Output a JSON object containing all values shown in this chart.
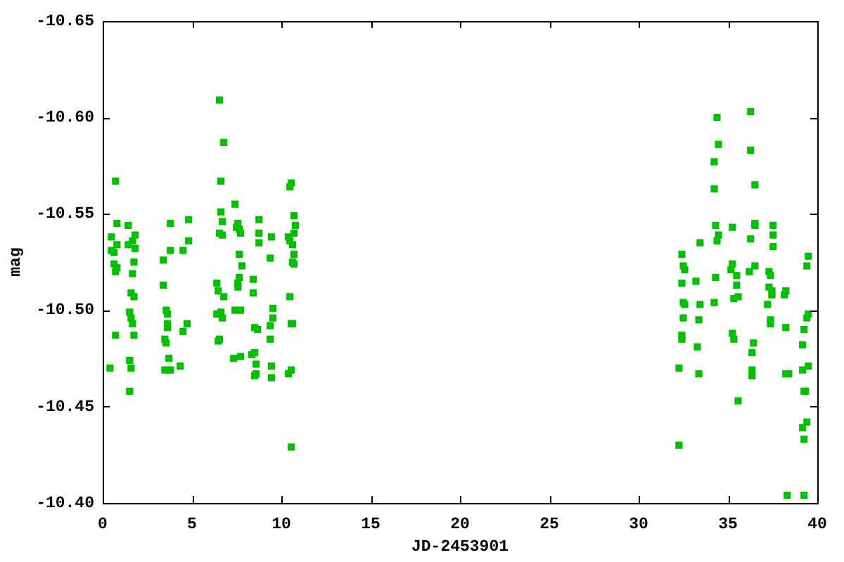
{
  "chart_data": {
    "type": "scatter",
    "xlabel": "JD-2453901",
    "ylabel": "mag",
    "xlim": [
      0,
      40
    ],
    "xticks": [
      0,
      5,
      10,
      15,
      20,
      25,
      30,
      35,
      40
    ],
    "ylim": [
      -10.4,
      -10.65
    ],
    "yticks": [
      {
        "value": -10.65,
        "label": "-10.65"
      },
      {
        "value": -10.6,
        "label": "-10.60"
      },
      {
        "value": -10.55,
        "label": "-10.55"
      },
      {
        "value": -10.5,
        "label": "-10.50"
      },
      {
        "value": -10.45,
        "label": "-10.45"
      },
      {
        "value": -10.4,
        "label": "-10.40"
      }
    ],
    "marker": "square",
    "color": "#00c000",
    "x": [
      0.72,
      0.8,
      1.43,
      3.79,
      4.81,
      0.49,
      1.82,
      1.67,
      0.8,
      1.43,
      4.81,
      0.49,
      0.64,
      1.82,
      3.79,
      4.5,
      3.4,
      0.64,
      1.75,
      0.8,
      0.72,
      1.67,
      3.4,
      1.59,
      1.75,
      1.51,
      3.56,
      3.63,
      1.59,
      1.67,
      3.63,
      3.63,
      4.73,
      4.5,
      0.72,
      1.75,
      3.48,
      3.55,
      3.71,
      1.51,
      0.41,
      1.59,
      3.48,
      3.79,
      4.34,
      1.51,
      6.54,
      6.78,
      6.62,
      10.56,
      10.48,
      7.41,
      6.62,
      8.75,
      10.71,
      6.7,
      7.57,
      10.79,
      7.49,
      7.65,
      6.54,
      6.7,
      7.72,
      8.75,
      10.71,
      9.45,
      10.4,
      10.48,
      8.75,
      10.63,
      7.65,
      10.71,
      9.38,
      10.63,
      10.71,
      7.8,
      7.65,
      8.43,
      6.39,
      7.57,
      7.57,
      6.47,
      8.43,
      6.78,
      10.48,
      9.53,
      7.72,
      7.41,
      6.62,
      6.39,
      9.53,
      6.7,
      10.56,
      10.63,
      9.38,
      8.51,
      8.67,
      9.38,
      6.54,
      6.47,
      8.51,
      8.35,
      7.72,
      7.33,
      8.59,
      9.45,
      10.56,
      10.4,
      8.59,
      8.51,
      9.45,
      10.56,
      34.39,
      36.27,
      34.47,
      36.27,
      34.23,
      34.23,
      36.51,
      34.31,
      35.25,
      36.51,
      36.51,
      37.53,
      34.47,
      37.53,
      34.39,
      33.44,
      36.27,
      37.53,
      32.42,
      39.5,
      32.5,
      32.58,
      35.25,
      35.17,
      39.42,
      36.51,
      36.2,
      37.3,
      37.38,
      35.49,
      34.31,
      32.42,
      33.21,
      35.49,
      37.3,
      37.46,
      37.46,
      38.24,
      38.16,
      35.57,
      35.33,
      32.5,
      32.58,
      33.44,
      34.23,
      37.22,
      39.5,
      39.42,
      37.38,
      37.38,
      32.5,
      33.37,
      38.24,
      39.26,
      35.25,
      35.33,
      32.42,
      32.42,
      33.29,
      36.43,
      39.18,
      36.35,
      32.26,
      33.37,
      39.5,
      39.18,
      36.35,
      36.35,
      38.24,
      38.4,
      35.57,
      39.26,
      39.34,
      39.42,
      39.18,
      39.26,
      32.26,
      38.32,
      39.26
    ],
    "values": [
      -10.567,
      -10.545,
      -10.544,
      -10.545,
      -10.547,
      -10.538,
      -10.539,
      -10.536,
      -10.534,
      -10.534,
      -10.536,
      -10.531,
      -10.53,
      -10.532,
      -10.531,
      -10.531,
      -10.526,
      -10.524,
      -10.525,
      -10.522,
      -10.52,
      -10.519,
      -10.513,
      -10.509,
      -10.507,
      -10.499,
      -10.5,
      -10.498,
      -10.496,
      -10.493,
      -10.493,
      -10.491,
      -10.493,
      -10.489,
      -10.487,
      -10.487,
      -10.485,
      -10.483,
      -10.475,
      -10.474,
      -10.47,
      -10.47,
      -10.469,
      -10.469,
      -10.471,
      -10.458,
      -10.609,
      -10.587,
      -10.567,
      -10.566,
      -10.564,
      -10.555,
      -10.551,
      -10.547,
      -10.549,
      -10.546,
      -10.545,
      -10.544,
      -10.543,
      -10.542,
      -10.54,
      -10.539,
      -10.54,
      -10.54,
      -10.54,
      -10.538,
      -10.538,
      -10.536,
      -10.535,
      -10.534,
      -10.529,
      -10.529,
      -10.527,
      -10.525,
      -10.524,
      -10.523,
      -10.517,
      -10.516,
      -10.514,
      -10.514,
      -10.512,
      -10.51,
      -10.509,
      -10.507,
      -10.507,
      -10.501,
      -10.5,
      -10.5,
      -10.499,
      -10.498,
      -10.496,
      -10.496,
      -10.493,
      -10.493,
      -10.492,
      -10.491,
      -10.49,
      -10.485,
      -10.485,
      -10.484,
      -10.478,
      -10.477,
      -10.476,
      -10.475,
      -10.472,
      -10.471,
      -10.469,
      -10.467,
      -10.467,
      -10.466,
      -10.465,
      -10.429,
      -10.6,
      -10.603,
      -10.586,
      -10.583,
      -10.577,
      -10.563,
      -10.565,
      -10.544,
      -10.543,
      -10.545,
      -10.544,
      -10.544,
      -10.539,
      -10.539,
      -10.536,
      -10.535,
      -10.537,
      -10.533,
      -10.529,
      -10.528,
      -10.523,
      -10.521,
      -10.524,
      -10.521,
      -10.523,
      -10.523,
      -10.52,
      -10.52,
      -10.518,
      -10.518,
      -10.517,
      -10.514,
      -10.515,
      -10.513,
      -10.512,
      -10.51,
      -10.508,
      -10.51,
      -10.508,
      -10.507,
      -10.506,
      -10.504,
      -10.503,
      -10.503,
      -10.504,
      -10.503,
      -10.498,
      -10.496,
      -10.495,
      -10.493,
      -10.496,
      -10.495,
      -10.491,
      -10.49,
      -10.488,
      -10.485,
      -10.487,
      -10.485,
      -10.481,
      -10.483,
      -10.482,
      -10.478,
      -10.47,
      -10.467,
      -10.471,
      -10.469,
      -10.469,
      -10.466,
      -10.467,
      -10.467,
      -10.453,
      -10.458,
      -10.458,
      -10.442,
      -10.439,
      -10.433,
      -10.43,
      -10.404,
      -10.404
    ]
  }
}
